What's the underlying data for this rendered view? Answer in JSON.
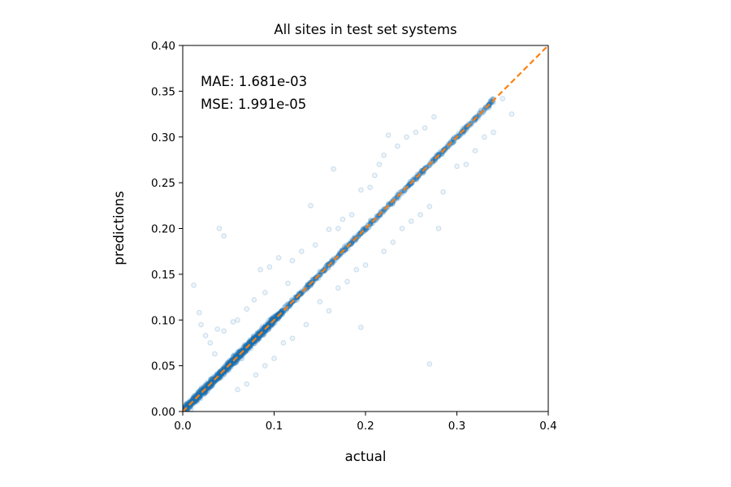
{
  "chart_data": {
    "type": "scatter",
    "title": "All sites in test set systems",
    "xlabel": "actual",
    "ylabel": "predictions",
    "xlim": [
      0.0,
      0.4
    ],
    "ylim": [
      0.0,
      0.4
    ],
    "xticks": [
      "0.0",
      "0.1",
      "0.2",
      "0.3",
      "0.4"
    ],
    "yticks": [
      "0.00",
      "0.05",
      "0.10",
      "0.15",
      "0.20",
      "0.25",
      "0.30",
      "0.35",
      "0.40"
    ],
    "grid": false,
    "annotations": [
      "MAE: 1.681e-03",
      "MSE: 1.991e-05"
    ],
    "series": [
      {
        "kind": "scatter",
        "color": "#1f77b4",
        "marker_alpha": 0.08,
        "points": [
          [
            0.005,
            0.004
          ],
          [
            0.01,
            0.011
          ],
          [
            0.015,
            0.013
          ],
          [
            0.02,
            0.021
          ],
          [
            0.025,
            0.024
          ],
          [
            0.03,
            0.031
          ],
          [
            0.035,
            0.034
          ],
          [
            0.04,
            0.041
          ],
          [
            0.045,
            0.044
          ],
          [
            0.05,
            0.051
          ],
          [
            0.055,
            0.054
          ],
          [
            0.06,
            0.061
          ],
          [
            0.065,
            0.064
          ],
          [
            0.07,
            0.071
          ],
          [
            0.075,
            0.074
          ],
          [
            0.08,
            0.081
          ],
          [
            0.085,
            0.084
          ],
          [
            0.09,
            0.091
          ],
          [
            0.095,
            0.094
          ],
          [
            0.1,
            0.101
          ],
          [
            0.11,
            0.109
          ],
          [
            0.12,
            0.121
          ],
          [
            0.13,
            0.129
          ],
          [
            0.14,
            0.141
          ],
          [
            0.15,
            0.149
          ],
          [
            0.16,
            0.161
          ],
          [
            0.17,
            0.169
          ],
          [
            0.18,
            0.181
          ],
          [
            0.19,
            0.189
          ],
          [
            0.2,
            0.201
          ],
          [
            0.21,
            0.209
          ],
          [
            0.22,
            0.221
          ],
          [
            0.23,
            0.229
          ],
          [
            0.24,
            0.241
          ],
          [
            0.25,
            0.249
          ],
          [
            0.26,
            0.261
          ],
          [
            0.27,
            0.269
          ],
          [
            0.28,
            0.281
          ],
          [
            0.29,
            0.289
          ],
          [
            0.3,
            0.301
          ],
          [
            0.31,
            0.309
          ],
          [
            0.32,
            0.321
          ],
          [
            0.33,
            0.329
          ],
          [
            0.34,
            0.338
          ],
          [
            0.35,
            0.342
          ],
          [
            0.012,
            0.138
          ],
          [
            0.018,
            0.108
          ],
          [
            0.02,
            0.095
          ],
          [
            0.025,
            0.083
          ],
          [
            0.03,
            0.075
          ],
          [
            0.038,
            0.09
          ],
          [
            0.045,
            0.088
          ],
          [
            0.055,
            0.098
          ],
          [
            0.06,
            0.1
          ],
          [
            0.07,
            0.112
          ],
          [
            0.078,
            0.122
          ],
          [
            0.085,
            0.155
          ],
          [
            0.09,
            0.13
          ],
          [
            0.095,
            0.158
          ],
          [
            0.105,
            0.168
          ],
          [
            0.115,
            0.14
          ],
          [
            0.12,
            0.165
          ],
          [
            0.13,
            0.175
          ],
          [
            0.14,
            0.225
          ],
          [
            0.145,
            0.182
          ],
          [
            0.16,
            0.199
          ],
          [
            0.165,
            0.265
          ],
          [
            0.17,
            0.2
          ],
          [
            0.175,
            0.21
          ],
          [
            0.185,
            0.215
          ],
          [
            0.195,
            0.242
          ],
          [
            0.205,
            0.245
          ],
          [
            0.21,
            0.258
          ],
          [
            0.215,
            0.27
          ],
          [
            0.22,
            0.28
          ],
          [
            0.225,
            0.302
          ],
          [
            0.235,
            0.29
          ],
          [
            0.245,
            0.3
          ],
          [
            0.255,
            0.305
          ],
          [
            0.265,
            0.31
          ],
          [
            0.275,
            0.322
          ],
          [
            0.04,
            0.2
          ],
          [
            0.045,
            0.192
          ],
          [
            0.06,
            0.024
          ],
          [
            0.07,
            0.03
          ],
          [
            0.08,
            0.04
          ],
          [
            0.09,
            0.05
          ],
          [
            0.1,
            0.058
          ],
          [
            0.11,
            0.075
          ],
          [
            0.12,
            0.08
          ],
          [
            0.135,
            0.095
          ],
          [
            0.15,
            0.12
          ],
          [
            0.16,
            0.11
          ],
          [
            0.17,
            0.135
          ],
          [
            0.18,
            0.142
          ],
          [
            0.19,
            0.155
          ],
          [
            0.2,
            0.16
          ],
          [
            0.22,
            0.175
          ],
          [
            0.23,
            0.185
          ],
          [
            0.24,
            0.2
          ],
          [
            0.25,
            0.208
          ],
          [
            0.26,
            0.215
          ],
          [
            0.27,
            0.224
          ],
          [
            0.28,
            0.2
          ],
          [
            0.285,
            0.24
          ],
          [
            0.3,
            0.268
          ],
          [
            0.31,
            0.27
          ],
          [
            0.32,
            0.285
          ],
          [
            0.33,
            0.3
          ],
          [
            0.34,
            0.305
          ],
          [
            0.36,
            0.325
          ],
          [
            0.27,
            0.052
          ],
          [
            0.195,
            0.092
          ],
          [
            0.035,
            0.063
          ],
          [
            0.065,
            0.058
          ]
        ]
      },
      {
        "kind": "line",
        "label": "",
        "color": "#ff7f0e",
        "style": "dashed",
        "x": [
          0.0,
          0.4
        ],
        "y": [
          0.0,
          0.4
        ]
      }
    ]
  }
}
